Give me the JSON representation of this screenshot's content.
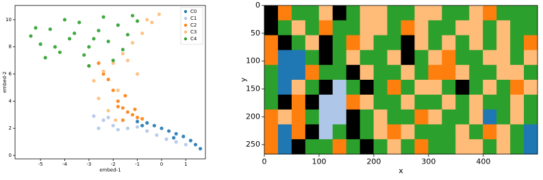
{
  "chart_data": [
    {
      "type": "scatter",
      "xlabel": "embed-1",
      "ylabel": "embed-2",
      "xlim": [
        -6.05,
        1.81
      ],
      "ylim": [
        -0.25,
        11.05
      ],
      "xticks": [
        -5,
        -4,
        -3,
        -2,
        -1,
        0,
        1
      ],
      "yticks": [
        0,
        2,
        4,
        6,
        8,
        10
      ],
      "legend": "upper right",
      "series": [
        {
          "name": "C0",
          "color": "#1f77b4",
          "x": [
            -1.0,
            -0.6,
            -0.3,
            0.0,
            0.3,
            0.6,
            0.9,
            1.2,
            1.4,
            1.6,
            -0.8,
            0.5
          ],
          "values": [
            2.5,
            2.4,
            2.2,
            2.0,
            1.8,
            1.6,
            1.4,
            1.1,
            0.8,
            0.5,
            2.2,
            1.3
          ]
        },
        {
          "name": "C1",
          "color": "#aec7e8",
          "x": [
            -2.8,
            -2.4,
            -2.0,
            -2.6,
            -1.8,
            -1.4,
            -1.0,
            -0.6,
            -0.2,
            0.2,
            0.6,
            1.0,
            -2.2
          ],
          "values": [
            2.9,
            2.6,
            2.2,
            2.0,
            1.9,
            2.0,
            2.1,
            1.8,
            1.5,
            1.2,
            1.0,
            0.8,
            2.8
          ]
        },
        {
          "name": "C2",
          "color": "#ff7f0e",
          "x": [
            -2.6,
            -2.2,
            -2.0,
            -1.8,
            -1.6,
            -1.4,
            -1.2,
            -1.0,
            -1.8,
            -1.5,
            -2.4,
            -1.1,
            -0.8,
            -1.6
          ],
          "values": [
            6.8,
            5.6,
            4.8,
            4.0,
            3.5,
            3.2,
            3.0,
            2.8,
            3.6,
            4.4,
            6.0,
            3.4,
            2.7,
            2.6
          ]
        },
        {
          "name": "C3",
          "color": "#ffbb78",
          "x": [
            -2.8,
            -2.4,
            -2.0,
            -1.6,
            -1.2,
            -0.8,
            -0.4,
            -0.1,
            -2.6,
            -1.8,
            -1.0,
            -2.2,
            -1.4,
            -0.6,
            -3.0,
            -1.9
          ],
          "values": [
            5.5,
            6.2,
            6.8,
            7.5,
            8.3,
            9.0,
            9.8,
            10.4,
            4.2,
            4.8,
            6.0,
            3.3,
            7.0,
            10.0,
            6.6,
            2.6
          ]
        },
        {
          "name": "C4",
          "color": "#2ca02c",
          "x": [
            -5.4,
            -5.0,
            -4.6,
            -4.2,
            -3.8,
            -3.4,
            -3.0,
            -2.6,
            -2.2,
            -1.8,
            -1.4,
            -1.0,
            -4.8,
            -4.0,
            -3.2,
            -2.4,
            -1.6,
            -4.4,
            -3.6,
            -2.8,
            -2.0,
            -5.2,
            -3.0,
            -1.2
          ],
          "values": [
            8.8,
            8.2,
            9.3,
            7.6,
            8.6,
            9.8,
            8.0,
            9.2,
            8.4,
            9.6,
            8.9,
            9.9,
            7.2,
            10.0,
            7.4,
            10.2,
            7.8,
            8.0,
            9.0,
            8.6,
            7.0,
            9.4,
            6.6,
            10.3
          ]
        }
      ]
    },
    {
      "type": "heatmap",
      "xlabel": "x",
      "ylabel": "y",
      "xlim": [
        0,
        499
      ],
      "ylim": [
        0,
        267
      ],
      "y_inverted": true,
      "xticks": [
        0,
        100,
        200,
        300,
        400
      ],
      "yticks": [
        0,
        50,
        100,
        150,
        200,
        250
      ],
      "colors": [
        "#1f77b4",
        "#aec7e8",
        "#ff7f0e",
        "#ffbb78",
        "#2ca02c"
      ],
      "cells": [
        [
          null,
          2,
          4,
          4,
          3,
          null,
          4,
          3,
          3,
          4,
          4,
          3,
          3,
          4,
          4,
          3,
          2,
          4,
          4,
          4
        ],
        [
          null,
          4,
          3,
          4,
          2,
          4,
          4,
          3,
          3,
          4,
          2,
          3,
          4,
          4,
          3,
          3,
          4,
          3,
          4,
          4
        ],
        [
          2,
          null,
          4,
          3,
          null,
          4,
          2,
          3,
          4,
          4,
          null,
          3,
          4,
          3,
          4,
          3,
          4,
          3,
          4,
          2
        ],
        [
          2,
          0,
          0,
          4,
          null,
          4,
          3,
          4,
          4,
          3,
          null,
          4,
          3,
          2,
          4,
          4,
          3,
          3,
          4,
          3
        ],
        [
          4,
          0,
          0,
          2,
          4,
          4,
          null,
          3,
          4,
          4,
          3,
          4,
          2,
          2,
          3,
          4,
          4,
          3,
          3,
          4
        ],
        [
          4,
          0,
          3,
          4,
          null,
          1,
          4,
          null,
          4,
          2,
          4,
          3,
          3,
          4,
          null,
          4,
          3,
          4,
          2,
          3
        ],
        [
          4,
          null,
          2,
          null,
          1,
          1,
          2,
          3,
          4,
          4,
          3,
          4,
          4,
          3,
          4,
          3,
          4,
          4,
          3,
          4
        ],
        [
          2,
          3,
          2,
          4,
          1,
          1,
          null,
          4,
          3,
          4,
          4,
          2,
          3,
          4,
          4,
          3,
          0,
          4,
          3,
          4
        ],
        [
          2,
          0,
          2,
          null,
          1,
          4,
          null,
          4,
          3,
          2,
          3,
          4,
          4,
          4,
          3,
          4,
          2,
          3,
          4,
          0
        ],
        [
          2,
          0,
          null,
          4,
          4,
          2,
          4,
          null,
          4,
          3,
          4,
          2,
          4,
          4,
          3,
          3,
          4,
          3,
          4,
          0
        ]
      ]
    }
  ]
}
